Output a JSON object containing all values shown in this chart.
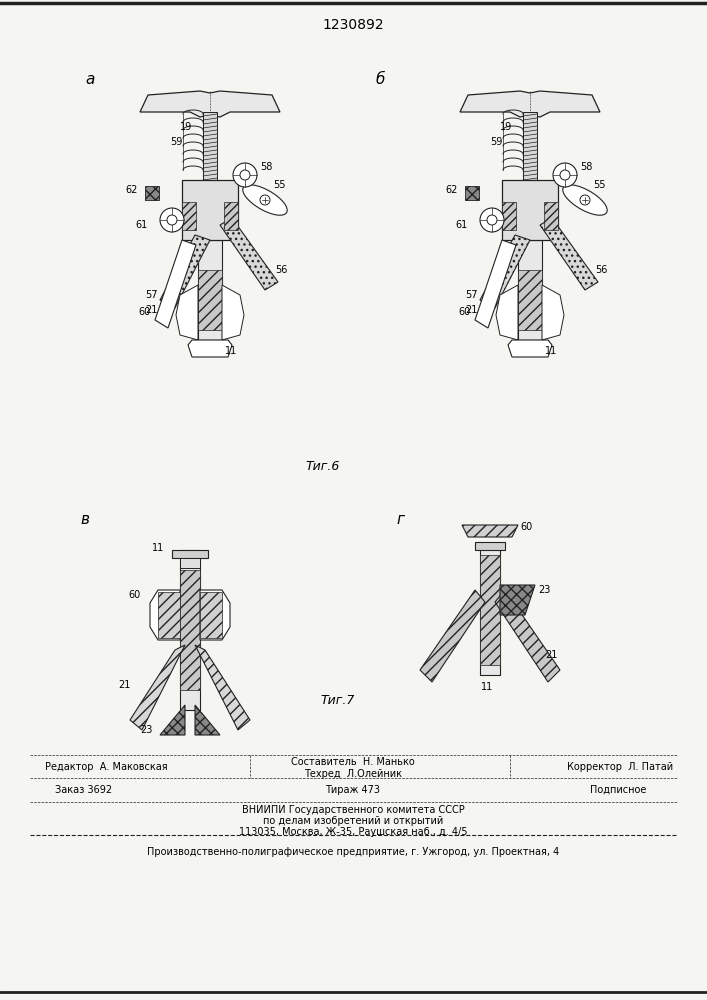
{
  "patent_number": "1230892",
  "fig6_label": "Τиг.6",
  "fig7_label": "Τиг.7",
  "subfig_a": "а",
  "subfig_b": "б",
  "subfig_v": "в",
  "subfig_g": "г",
  "editor_line": "Редактор  А. Маковская",
  "composer_line1": "Составитель  Н. Манько",
  "composer_line2": "Техред  Л.Олейник",
  "corrector_line": "Корректор  Л. Патай",
  "order_line": "Заказ 3692",
  "tirage_line": "Тираж 473",
  "podpisnoe_line": "Подписное",
  "vniip_line1": "ВНИИПИ Государственного комитета СССР",
  "vniip_line2": "по делам изобретений и открытий",
  "vniip_line3": "113035, Москва, Ж-35, Раушская наб., д. 4/5",
  "print_line": "Производственно-полиграфическое предприятие, г. Ужгород, ул. Проектная, 4",
  "bg_color": "#f5f5f2",
  "line_color": "#222222"
}
